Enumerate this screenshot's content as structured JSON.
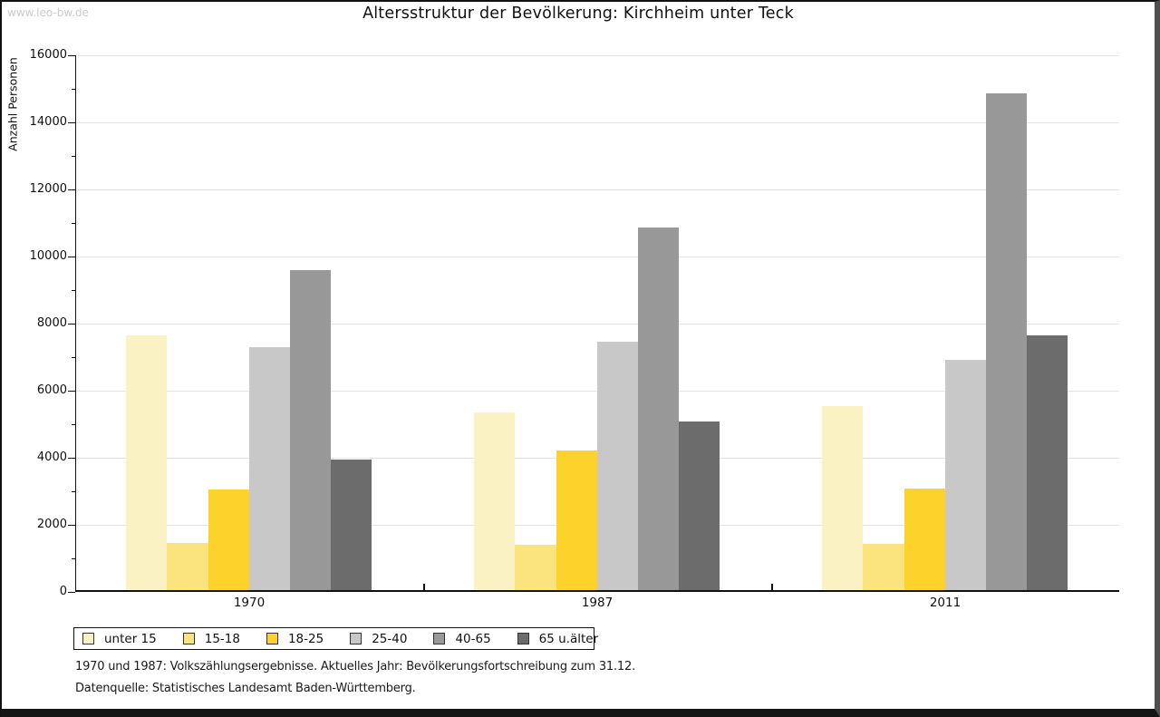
{
  "watermark": "www.leo-bw.de",
  "title": "Altersstruktur der Bevölkerung: Kirchheim unter Teck",
  "footnotes": {
    "line1": "1970 und 1987: Volkszählungsergebnisse. Aktuelles Jahr: Bevölkerungsfortschreibung zum 31.12.",
    "line2": "Datenquelle: Statistisches Landesamt Baden-Württemberg."
  },
  "chart_data": {
    "type": "bar",
    "title": "Altersstruktur der Bevölkerung: Kirchheim unter Teck",
    "xlabel": "",
    "ylabel": "Anzahl Personen",
    "categories": [
      "1970",
      "1987",
      "2011"
    ],
    "series": [
      {
        "name": "unter 15",
        "color": "#FBF2C4",
        "values": [
          7600,
          5300,
          5500
        ]
      },
      {
        "name": "15-18",
        "color": "#FBE47E",
        "values": [
          1400,
          1340,
          1380
        ]
      },
      {
        "name": "18-25",
        "color": "#FCD22B",
        "values": [
          3000,
          4150,
          3030
        ]
      },
      {
        "name": "25-40",
        "color": "#C8C8C8",
        "values": [
          7250,
          7400,
          6860
        ]
      },
      {
        "name": "40-65",
        "color": "#989898",
        "values": [
          9550,
          10800,
          14800
        ]
      },
      {
        "name": "65 u.älter",
        "color": "#6C6C6C",
        "values": [
          3890,
          5040,
          7600
        ]
      }
    ],
    "ylim": [
      0,
      16000
    ],
    "ytick_step": 2000,
    "minor_tick_step": 1000,
    "grid": true,
    "gridline_color": "#e3e3e3",
    "axis_color": "#111111",
    "legend_position": "bottom-left"
  }
}
